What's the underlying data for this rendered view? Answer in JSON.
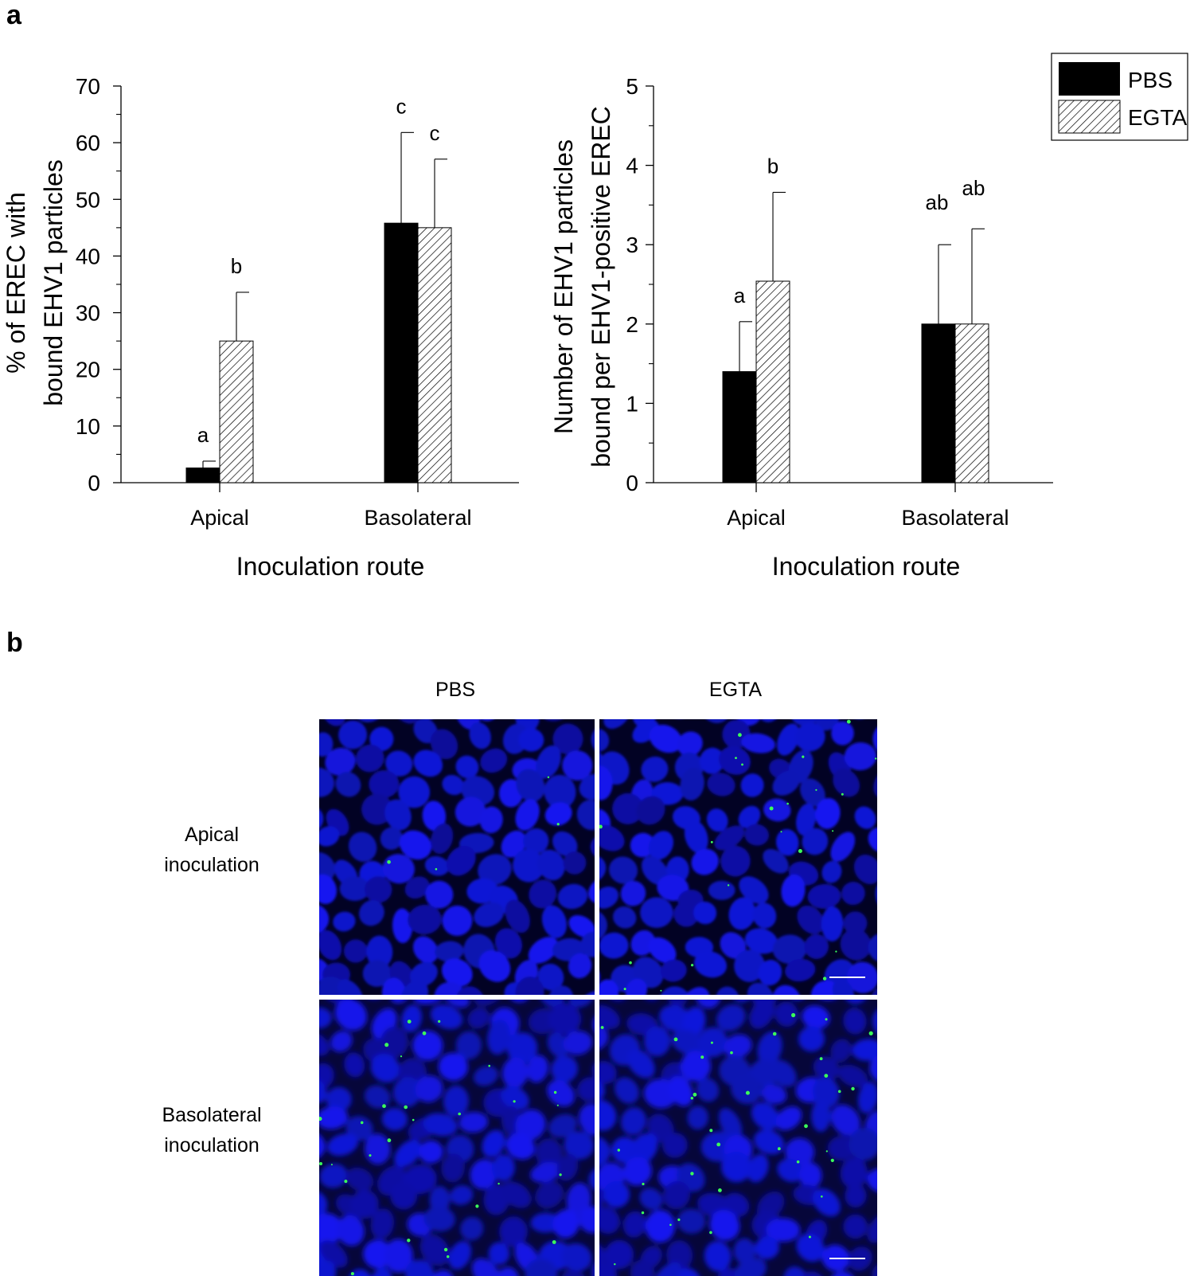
{
  "panel_a_label": "a",
  "panel_b_label": "b",
  "legend": {
    "pbs": "PBS",
    "egta": "EGTA"
  },
  "chart_data": [
    {
      "type": "bar",
      "title": "",
      "categories": [
        "Apical",
        "Basolateral"
      ],
      "xlabel": "Inoculation route",
      "ylabel_line1": "% of EREC with",
      "ylabel_line2": "bound EHV1 particles",
      "ylim": [
        0,
        70
      ],
      "yticks": [
        0,
        10,
        20,
        30,
        40,
        50,
        60,
        70
      ],
      "series": [
        {
          "name": "PBS",
          "values": [
            2.6,
            45.8
          ],
          "errors": [
            1.2,
            16.0
          ],
          "letters": [
            "a",
            "c"
          ]
        },
        {
          "name": "EGTA",
          "values": [
            25.0,
            45.0
          ],
          "errors": [
            8.6,
            12.1
          ],
          "letters": [
            "b",
            "c"
          ]
        }
      ]
    },
    {
      "type": "bar",
      "title": "",
      "categories": [
        "Apical",
        "Basolateral"
      ],
      "xlabel": "Inoculation route",
      "ylabel_line1": "Number of EHV1 particles",
      "ylabel_line2": "bound per EHV1-positive EREC",
      "ylim": [
        0,
        5
      ],
      "yticks": [
        0,
        1,
        2,
        3,
        4,
        5
      ],
      "series": [
        {
          "name": "PBS",
          "values": [
            1.4,
            2.0
          ],
          "errors": [
            0.63,
            1.0
          ],
          "letters": [
            "a",
            "ab"
          ]
        },
        {
          "name": "EGTA",
          "values": [
            2.54,
            2.0
          ],
          "errors": [
            1.12,
            1.2
          ],
          "letters": [
            "b",
            "ab"
          ]
        }
      ]
    }
  ],
  "micrographs": {
    "col_labels": [
      "PBS",
      "EGTA"
    ],
    "row1_label": [
      "Apical",
      "inoculation"
    ],
    "row2_label": [
      "Basolateral",
      "inoculation"
    ]
  }
}
